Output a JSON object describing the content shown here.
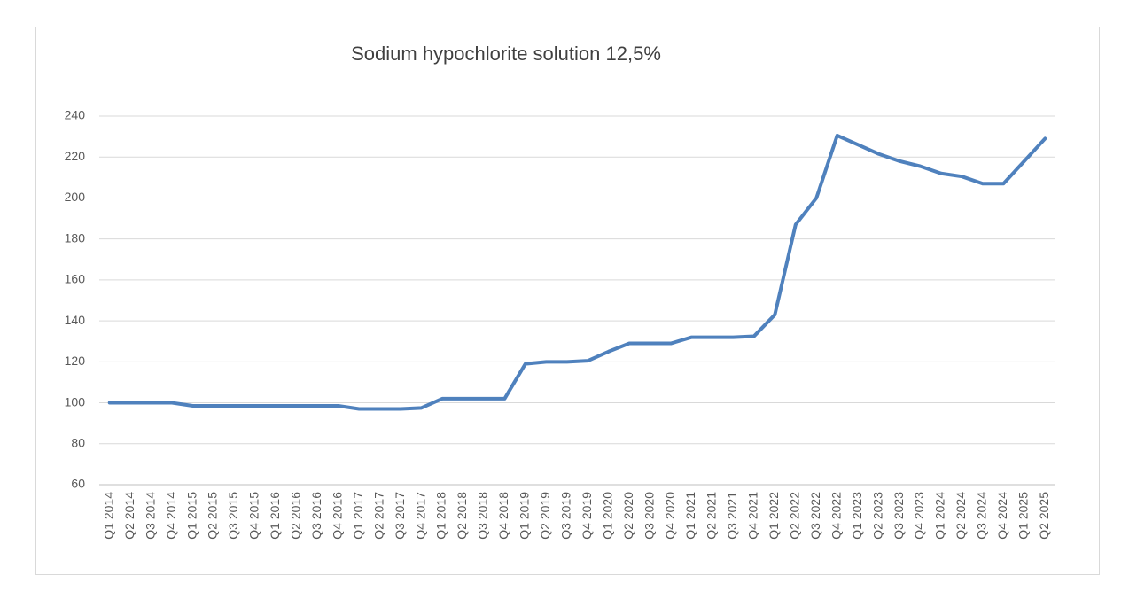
{
  "chart_data": {
    "type": "line",
    "title": "Sodium hypochlorite solution 12,5%",
    "categories": [
      "Q1 2014",
      "Q2 2014",
      "Q3 2014",
      "Q4 2014",
      "Q1 2015",
      "Q2 2015",
      "Q3 2015",
      "Q4 2015",
      "Q1 2016",
      "Q2 2016",
      "Q3 2016",
      "Q4 2016",
      "Q1 2017",
      "Q2 2017",
      "Q3 2017",
      "Q4 2017",
      "Q1 2018",
      "Q2 2018",
      "Q3 2018",
      "Q4 2018",
      "Q1 2019",
      "Q2 2019",
      "Q3 2019",
      "Q4 2019",
      "Q1 2020",
      "Q2 2020",
      "Q3 2020",
      "Q4 2020",
      "Q1 2021",
      "Q2 2021",
      "Q3 2021",
      "Q4 2021",
      "Q1 2022",
      "Q2 2022",
      "Q3 2022",
      "Q4 2022",
      "Q1 2023",
      "Q2 2023",
      "Q3 2023",
      "Q4 2023",
      "Q1 2024",
      "Q2 2024",
      "Q3 2024",
      "Q4 2024",
      "Q1 2025",
      "Q2 2025"
    ],
    "series": [
      {
        "name": "Sodium hypochlorite solution 12,5%",
        "color": "#4f81bd",
        "values": [
          100,
          100,
          100,
          100,
          98.5,
          98.5,
          98.5,
          98.5,
          98.5,
          98.5,
          98.5,
          98.5,
          97,
          97,
          97,
          97.5,
          102,
          102,
          102,
          102,
          119,
          120,
          120,
          120.5,
          125,
          129,
          129,
          129,
          132,
          132,
          132,
          132.5,
          143,
          187,
          200,
          230.5,
          226,
          221.5,
          218,
          215.5,
          212,
          210.5,
          207,
          207,
          218,
          229
        ]
      }
    ],
    "ylim": [
      60,
      240
    ],
    "yticks": [
      60,
      80,
      100,
      120,
      140,
      160,
      180,
      200,
      220,
      240
    ],
    "grid": true
  }
}
